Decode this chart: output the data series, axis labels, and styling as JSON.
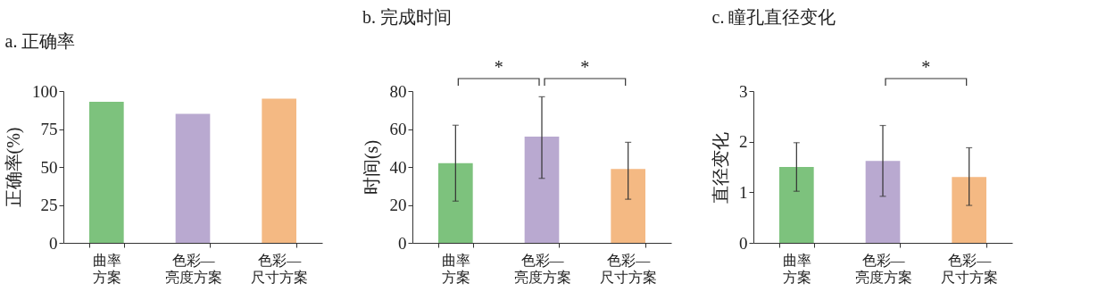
{
  "chart_data": [
    {
      "type": "bar",
      "title": "a. 正确率",
      "ylabel": "正确率(%)",
      "categories": [
        "曲率方案",
        "色彩—亮度方案",
        "色彩—尺寸方案"
      ],
      "values": [
        93,
        85,
        95
      ],
      "colors": [
        "#7dc27d",
        "#b9a9d0",
        "#f4b983"
      ],
      "ylim": [
        0,
        100
      ],
      "yticks": [
        0,
        25,
        50,
        75,
        100
      ],
      "grid": false
    },
    {
      "type": "bar",
      "title": "b. 完成时间",
      "ylabel": "时间(s)",
      "categories": [
        "曲率方案",
        "色彩—亮度方案",
        "色彩—尺寸方案"
      ],
      "values": [
        42,
        56,
        39
      ],
      "colors": [
        "#7dc27d",
        "#b9a9d0",
        "#f4b983"
      ],
      "errors": [
        [
          22,
          62
        ],
        [
          34,
          77
        ],
        [
          23,
          53
        ]
      ],
      "ylim": [
        0,
        80
      ],
      "yticks": [
        0,
        20,
        40,
        60,
        80
      ],
      "grid": false,
      "annotations": [
        "*",
        "*"
      ]
    },
    {
      "type": "bar",
      "title": "c. 瞳孔直径变化",
      "ylabel": "直径变化",
      "categories": [
        "曲率方案",
        "色彩—亮度方案",
        "色彩—尺寸方案"
      ],
      "values": [
        1.5,
        1.62,
        1.3
      ],
      "colors": [
        "#7dc27d",
        "#b9a9d0",
        "#f4b983"
      ],
      "errors": [
        [
          1.02,
          1.98
        ],
        [
          0.92,
          2.32
        ],
        [
          0.74,
          1.88
        ]
      ],
      "ylim": [
        0,
        3
      ],
      "yticks": [
        0,
        1,
        2,
        3
      ],
      "grid": false,
      "annotations": [
        "*"
      ]
    }
  ]
}
